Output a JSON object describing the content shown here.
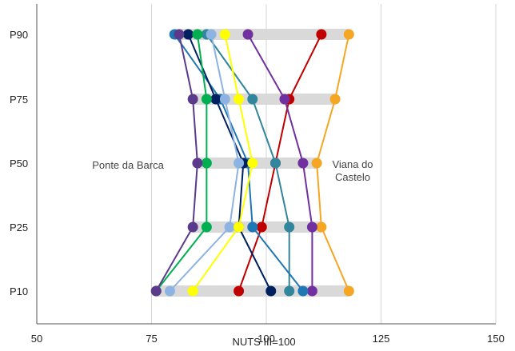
{
  "chart_data": {
    "type": "line",
    "title": "",
    "xlabel": "NUTS III=100",
    "ylabel": "",
    "xlim": [
      50,
      150
    ],
    "x_ticks": [
      "50",
      "75",
      "100",
      "125",
      "150"
    ],
    "categories": [
      "P10",
      "P25",
      "P50",
      "P75",
      "P90"
    ],
    "grid": "vertical",
    "annotations": [
      {
        "text": "Ponte da Barca",
        "lines": [
          "Ponte da Barca"
        ]
      },
      {
        "text": "Viana do Castelo",
        "lines": [
          "Viana do",
          "Castelo"
        ]
      }
    ],
    "series": [
      {
        "color": "#f5a623",
        "values": [
          118,
          112,
          111,
          115,
          118
        ]
      },
      {
        "color": "#c00000",
        "values": [
          94,
          99,
          102,
          105,
          112
        ]
      },
      {
        "color": "#7030a0",
        "values": [
          110,
          110,
          108,
          104,
          96
        ]
      },
      {
        "color": "#31859c",
        "values": [
          105,
          105,
          102,
          97,
          87
        ]
      },
      {
        "color": "#1f77b4",
        "values": [
          108,
          97,
          96,
          90,
          80
        ]
      },
      {
        "color": "#002060",
        "values": [
          101,
          94,
          95,
          89,
          83
        ]
      },
      {
        "color": "#8db3e2",
        "values": [
          79,
          92,
          94,
          91,
          88
        ]
      },
      {
        "color": "#ffff00",
        "values": [
          84,
          94,
          97,
          94,
          91
        ]
      },
      {
        "color": "#00b050",
        "values": [
          76,
          87,
          87,
          87,
          85
        ]
      },
      {
        "color": "#5b3a8c",
        "values": [
          76,
          84,
          85,
          84,
          81
        ]
      }
    ]
  }
}
